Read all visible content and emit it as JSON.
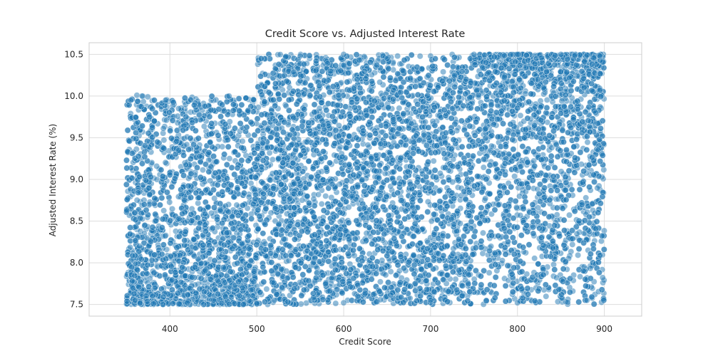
{
  "chart_data": {
    "type": "scatter",
    "title": "Credit Score vs. Adjusted Interest Rate",
    "xlabel": "Credit Score",
    "ylabel": "Adjusted Interest Rate (%)",
    "xlim": [
      307,
      943
    ],
    "ylim": [
      7.36,
      10.64
    ],
    "xticks": [
      400,
      500,
      600,
      700,
      800,
      900
    ],
    "yticks": [
      7.5,
      8.0,
      8.5,
      9.0,
      9.5,
      10.0,
      10.5
    ],
    "xtick_labels": [
      "400",
      "500",
      "600",
      "700",
      "800",
      "900"
    ],
    "ytick_labels": [
      "7.5",
      "8.0",
      "8.5",
      "9.0",
      "9.5",
      "10.0",
      "10.5"
    ],
    "grid": true,
    "legend": "none",
    "colors": {
      "point": "#1f77b4",
      "point_edge": "#ffffff",
      "grid": "#dddddd",
      "spine": "#cccccc",
      "text": "#262626"
    },
    "point_opacity": 0.5,
    "point_count": 10000,
    "regions": [
      {
        "x_range": [
          350,
          500
        ],
        "y_range": [
          7.5,
          10.0
        ],
        "density": "high toward lower rates",
        "note": "rates cluster between 7.5 and 9.0"
      },
      {
        "x_range": [
          500,
          750
        ],
        "y_range": [
          7.5,
          10.5
        ],
        "density": "roughly uniform"
      },
      {
        "x_range": [
          750,
          900
        ],
        "y_range": [
          7.5,
          10.5
        ],
        "density": "high toward upper rates",
        "note": "rates cluster between 9.5 and 10.5"
      }
    ],
    "series": [
      {
        "sample_points": [
          [
            355,
            9.95
          ],
          [
            362,
            10.01
          ],
          [
            368,
            10.0
          ],
          [
            395,
            9.95
          ],
          [
            410,
            9.85
          ],
          [
            440,
            9.88
          ],
          [
            468,
            10.0
          ],
          [
            480,
            9.82
          ],
          [
            360,
            7.55
          ],
          [
            380,
            7.6
          ],
          [
            420,
            7.52
          ],
          [
            450,
            7.55
          ],
          [
            490,
            7.6
          ],
          [
            505,
            10.45
          ],
          [
            550,
            10.48
          ],
          [
            600,
            10.5
          ],
          [
            650,
            10.45
          ],
          [
            700,
            10.48
          ],
          [
            750,
            10.5
          ],
          [
            800,
            10.5
          ],
          [
            850,
            10.5
          ],
          [
            895,
            10.48
          ],
          [
            520,
            7.55
          ],
          [
            600,
            7.52
          ],
          [
            700,
            7.55
          ],
          [
            800,
            7.52
          ],
          [
            880,
            7.55
          ],
          [
            365,
            8.2
          ],
          [
            420,
            8.5
          ],
          [
            460,
            8.1
          ],
          [
            530,
            9.2
          ],
          [
            610,
            8.8
          ],
          [
            690,
            9.1
          ],
          [
            770,
            9.9
          ],
          [
            830,
            10.1
          ],
          [
            890,
            9.8
          ]
        ]
      }
    ]
  }
}
